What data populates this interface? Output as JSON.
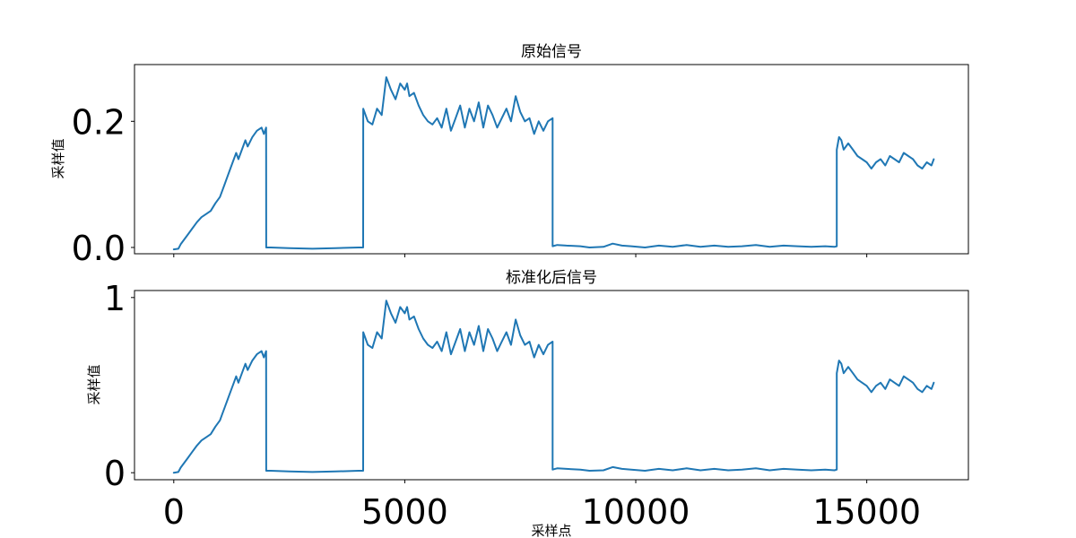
{
  "chart_data": [
    {
      "type": "line",
      "title": "原始信号",
      "ylabel": "采样值",
      "xlabel": "",
      "xlim": [
        -850,
        17200
      ],
      "ylim": [
        -0.01,
        0.29
      ],
      "xticks": [
        0,
        5000,
        10000,
        15000
      ],
      "show_xtick_labels": false,
      "yticks": [
        0.0,
        0.2
      ],
      "ytick_labels": [
        "0.0",
        "0.2"
      ],
      "grid": false,
      "series": [
        {
          "color": "#1f77b4",
          "x": [
            0,
            100,
            150,
            300,
            400,
            500,
            600,
            700,
            800,
            900,
            1000,
            1050,
            1100,
            1200,
            1300,
            1350,
            1400,
            1500,
            1550,
            1600,
            1700,
            1800,
            1900,
            1950,
            2000,
            2001,
            2100,
            2500,
            3000,
            3500,
            4000,
            4100,
            4101,
            4200,
            4300,
            4400,
            4500,
            4600,
            4700,
            4800,
            4900,
            5000,
            5050,
            5100,
            5200,
            5300,
            5400,
            5500,
            5600,
            5700,
            5800,
            5900,
            6000,
            6100,
            6200,
            6300,
            6400,
            6500,
            6600,
            6700,
            6800,
            6900,
            7000,
            7100,
            7200,
            7300,
            7400,
            7500,
            7600,
            7700,
            7800,
            7900,
            8000,
            8100,
            8200,
            8201,
            8300,
            8500,
            8800,
            9000,
            9300,
            9500,
            9700,
            9900,
            10200,
            10500,
            10800,
            11100,
            11400,
            11700,
            12000,
            12300,
            12600,
            12900,
            13200,
            13500,
            13800,
            14100,
            14300,
            14350,
            14351,
            14400,
            14450,
            14500,
            14600,
            14700,
            14800,
            14900,
            15000,
            15100,
            15200,
            15300,
            15400,
            15500,
            15600,
            15700,
            15800,
            15900,
            16000,
            16100,
            16200,
            16300,
            16400,
            16450
          ],
          "y": [
            -0.003,
            -0.002,
            0.005,
            0.02,
            0.03,
            0.04,
            0.048,
            0.053,
            0.058,
            0.07,
            0.08,
            0.09,
            0.1,
            0.12,
            0.14,
            0.15,
            0.14,
            0.16,
            0.17,
            0.16,
            0.175,
            0.185,
            0.19,
            0.18,
            0.19,
            0.0,
            0.0,
            -0.001,
            -0.002,
            -0.001,
            0.0,
            0.0,
            0.22,
            0.2,
            0.195,
            0.22,
            0.21,
            0.27,
            0.25,
            0.235,
            0.26,
            0.25,
            0.26,
            0.24,
            0.245,
            0.225,
            0.21,
            0.2,
            0.195,
            0.205,
            0.19,
            0.22,
            0.185,
            0.205,
            0.225,
            0.19,
            0.22,
            0.2,
            0.23,
            0.19,
            0.225,
            0.21,
            0.19,
            0.205,
            0.22,
            0.2,
            0.24,
            0.215,
            0.2,
            0.205,
            0.18,
            0.2,
            0.185,
            0.2,
            0.205,
            0.002,
            0.004,
            0.003,
            0.002,
            0.0,
            0.001,
            0.006,
            0.003,
            0.002,
            0.0,
            0.003,
            0.001,
            0.004,
            0.001,
            0.003,
            0.001,
            0.002,
            0.004,
            0.001,
            0.003,
            0.002,
            0.001,
            0.002,
            0.001,
            0.002,
            0.155,
            0.175,
            0.17,
            0.155,
            0.165,
            0.155,
            0.145,
            0.14,
            0.135,
            0.125,
            0.135,
            0.14,
            0.13,
            0.145,
            0.14,
            0.135,
            0.15,
            0.145,
            0.14,
            0.13,
            0.125,
            0.135,
            0.13,
            0.14
          ]
        }
      ]
    },
    {
      "type": "line",
      "title": "标准化后信号",
      "ylabel": "采样值",
      "xlabel": "采样点",
      "xlim": [
        -850,
        17200
      ],
      "ylim": [
        -0.04,
        1.04
      ],
      "xticks": [
        0,
        5000,
        10000,
        15000
      ],
      "xtick_labels": [
        "0",
        "5000",
        "10000",
        "15000"
      ],
      "show_xtick_labels": true,
      "yticks": [
        0,
        1
      ],
      "ytick_labels": [
        "0",
        "1"
      ],
      "grid": false,
      "series": [
        {
          "color": "#1f77b4",
          "x": [
            0,
            100,
            150,
            300,
            400,
            500,
            600,
            700,
            800,
            900,
            1000,
            1050,
            1100,
            1200,
            1300,
            1350,
            1400,
            1500,
            1550,
            1600,
            1700,
            1800,
            1900,
            1950,
            2000,
            2001,
            2100,
            2500,
            3000,
            3500,
            4000,
            4100,
            4101,
            4200,
            4300,
            4400,
            4500,
            4600,
            4700,
            4800,
            4900,
            5000,
            5050,
            5100,
            5200,
            5300,
            5400,
            5500,
            5600,
            5700,
            5800,
            5900,
            6000,
            6100,
            6200,
            6300,
            6400,
            6500,
            6600,
            6700,
            6800,
            6900,
            7000,
            7100,
            7200,
            7300,
            7400,
            7500,
            7600,
            7700,
            7800,
            7900,
            8000,
            8100,
            8200,
            8201,
            8300,
            8500,
            8800,
            9000,
            9300,
            9500,
            9700,
            9900,
            10200,
            10500,
            10800,
            11100,
            11400,
            11700,
            12000,
            12300,
            12600,
            12900,
            13200,
            13500,
            13800,
            14100,
            14300,
            14350,
            14351,
            14400,
            14450,
            14500,
            14600,
            14700,
            14800,
            14900,
            15000,
            15100,
            15200,
            15300,
            15400,
            15500,
            15600,
            15700,
            15800,
            15900,
            16000,
            16100,
            16200,
            16300,
            16400,
            16450
          ],
          "y": [
            0.0,
            0.004,
            0.029,
            0.083,
            0.119,
            0.155,
            0.184,
            0.202,
            0.22,
            0.263,
            0.299,
            0.335,
            0.371,
            0.442,
            0.514,
            0.55,
            0.514,
            0.586,
            0.622,
            0.586,
            0.64,
            0.676,
            0.694,
            0.658,
            0.694,
            0.011,
            0.011,
            0.007,
            0.004,
            0.007,
            0.011,
            0.011,
            0.802,
            0.73,
            0.712,
            0.802,
            0.766,
            0.982,
            0.91,
            0.856,
            0.946,
            0.91,
            0.946,
            0.874,
            0.892,
            0.82,
            0.766,
            0.73,
            0.712,
            0.748,
            0.694,
            0.802,
            0.676,
            0.748,
            0.82,
            0.694,
            0.802,
            0.73,
            0.838,
            0.694,
            0.82,
            0.766,
            0.694,
            0.748,
            0.802,
            0.73,
            0.874,
            0.784,
            0.73,
            0.748,
            0.658,
            0.73,
            0.676,
            0.73,
            0.748,
            0.018,
            0.025,
            0.022,
            0.018,
            0.011,
            0.014,
            0.032,
            0.022,
            0.018,
            0.011,
            0.022,
            0.014,
            0.025,
            0.014,
            0.022,
            0.014,
            0.018,
            0.025,
            0.014,
            0.022,
            0.018,
            0.014,
            0.018,
            0.014,
            0.018,
            0.568,
            0.64,
            0.622,
            0.568,
            0.604,
            0.568,
            0.532,
            0.514,
            0.496,
            0.46,
            0.496,
            0.514,
            0.478,
            0.532,
            0.514,
            0.496,
            0.55,
            0.532,
            0.514,
            0.478,
            0.46,
            0.496,
            0.478,
            0.514
          ]
        }
      ]
    }
  ]
}
